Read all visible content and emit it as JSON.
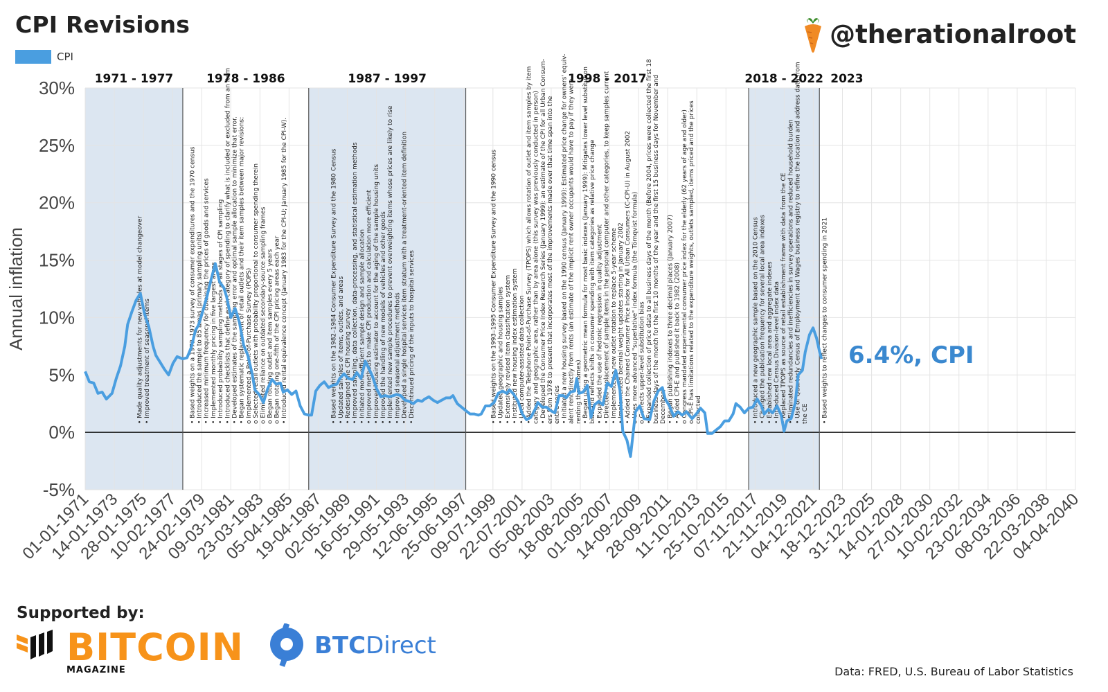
{
  "header": {
    "title": "CPI Revisions",
    "handle": "@therationalroot",
    "handle_icon": "carrot-icon"
  },
  "legend": {
    "label": "CPI",
    "color": "#4a9ee0"
  },
  "annotation": {
    "text": "6.4%, CPI",
    "color": "#3a88cf"
  },
  "footer": {
    "supported_by": "Supported by:",
    "sponsor1_word": "BITCOIN",
    "sponsor1_sub": "MAGAZINE",
    "sponsor2_word_a": "BTC",
    "sponsor2_word_b": "Direct",
    "source": "Data: FRED, U.S. Bureau of Labor Statistics"
  },
  "chart_data": {
    "type": "line",
    "ylabel": "Annual inflation",
    "ylim": [
      -5,
      30
    ],
    "yticks": [
      "-5%",
      "0%",
      "5%",
      "10%",
      "15%",
      "20%",
      "25%",
      "30%"
    ],
    "xlim": [
      "1971-01-01",
      "2041-01-01"
    ],
    "xtick_labels": [
      "01-01-1971",
      "14-01-1973",
      "28-01-1975",
      "10-02-1977",
      "24-02-1979",
      "09-03-1981",
      "23-03-1983",
      "05-04-1985",
      "19-04-1987",
      "02-05-1989",
      "16-05-1991",
      "29-05-1993",
      "12-06-1995",
      "25-06-1997",
      "09-07-1999",
      "22-07-2001",
      "05-08-2003",
      "18-08-2005",
      "01-09-2007",
      "14-09-2009",
      "28-09-2011",
      "11-10-2013",
      "25-10-2015",
      "07-11-2017",
      "21-11-2019",
      "04-12-2021",
      "18-12-2023",
      "31-12-2025",
      "14-01-2028",
      "27-01-2030",
      "10-02-2032",
      "23-02-2034",
      "08-03-2036",
      "22-03-2038",
      "04-04-2040"
    ],
    "periods": [
      {
        "label": "1971 - 1977",
        "start": 1971.0,
        "end": 1977.9,
        "shaded": true
      },
      {
        "label": "1978 - 1986",
        "start": 1977.9,
        "end": 1986.8,
        "shaded": false
      },
      {
        "label": "1987 - 1997",
        "start": 1986.8,
        "end": 1997.9,
        "shaded": true
      },
      {
        "label": "1998 - 2017",
        "start": 1997.9,
        "end": 2017.9,
        "shaded": false
      },
      {
        "label": "2018 - 2022",
        "start": 2017.9,
        "end": 2022.9,
        "shaded": true
      },
      {
        "label": "2023",
        "start": 2022.9,
        "end": 2024.9,
        "shaded": false
      }
    ],
    "series": [
      {
        "name": "CPI",
        "color": "#4a9ee0",
        "points": [
          [
            1971.0,
            5.3
          ],
          [
            1971.3,
            4.4
          ],
          [
            1971.6,
            4.3
          ],
          [
            1971.9,
            3.4
          ],
          [
            1972.2,
            3.5
          ],
          [
            1972.5,
            2.9
          ],
          [
            1972.9,
            3.4
          ],
          [
            1973.2,
            4.7
          ],
          [
            1973.5,
            5.8
          ],
          [
            1973.8,
            7.5
          ],
          [
            1974.0,
            9.4
          ],
          [
            1974.3,
            10.5
          ],
          [
            1974.6,
            11.5
          ],
          [
            1974.9,
            12.1
          ],
          [
            1975.2,
            10.3
          ],
          [
            1975.5,
            9.2
          ],
          [
            1975.8,
            7.5
          ],
          [
            1976.0,
            6.7
          ],
          [
            1976.3,
            6.1
          ],
          [
            1976.6,
            5.5
          ],
          [
            1976.9,
            5.0
          ],
          [
            1977.2,
            6.0
          ],
          [
            1977.5,
            6.6
          ],
          [
            1977.9,
            6.4
          ],
          [
            1978.2,
            6.5
          ],
          [
            1978.5,
            7.4
          ],
          [
            1978.8,
            8.9
          ],
          [
            1979.0,
            9.3
          ],
          [
            1979.3,
            10.5
          ],
          [
            1979.6,
            11.8
          ],
          [
            1979.9,
            13.3
          ],
          [
            1980.2,
            14.7
          ],
          [
            1980.5,
            13.1
          ],
          [
            1980.8,
            12.6
          ],
          [
            1981.0,
            11.8
          ],
          [
            1981.3,
            10.0
          ],
          [
            1981.6,
            10.8
          ],
          [
            1981.9,
            9.6
          ],
          [
            1982.2,
            7.6
          ],
          [
            1982.5,
            6.7
          ],
          [
            1982.8,
            5.1
          ],
          [
            1983.0,
            3.7
          ],
          [
            1983.3,
            3.3
          ],
          [
            1983.6,
            2.6
          ],
          [
            1983.9,
            3.8
          ],
          [
            1984.2,
            4.6
          ],
          [
            1984.5,
            4.2
          ],
          [
            1984.8,
            4.3
          ],
          [
            1985.0,
            3.5
          ],
          [
            1985.3,
            3.7
          ],
          [
            1985.6,
            3.3
          ],
          [
            1985.9,
            3.6
          ],
          [
            1986.2,
            2.3
          ],
          [
            1986.5,
            1.6
          ],
          [
            1986.8,
            1.5
          ],
          [
            1987.0,
            1.5
          ],
          [
            1987.3,
            3.6
          ],
          [
            1987.6,
            4.1
          ],
          [
            1987.9,
            4.4
          ],
          [
            1988.2,
            3.9
          ],
          [
            1988.5,
            4.1
          ],
          [
            1988.8,
            4.2
          ],
          [
            1989.0,
            4.7
          ],
          [
            1989.3,
            5.1
          ],
          [
            1989.6,
            4.7
          ],
          [
            1989.9,
            4.6
          ],
          [
            1990.2,
            5.2
          ],
          [
            1990.5,
            4.7
          ],
          [
            1990.8,
            6.2
          ],
          [
            1991.0,
            5.7
          ],
          [
            1991.3,
            4.9
          ],
          [
            1991.6,
            3.8
          ],
          [
            1991.9,
            3.1
          ],
          [
            1992.2,
            3.2
          ],
          [
            1992.5,
            3.1
          ],
          [
            1992.8,
            3.2
          ],
          [
            1993.0,
            3.3
          ],
          [
            1993.3,
            3.2
          ],
          [
            1993.6,
            2.8
          ],
          [
            1993.9,
            2.7
          ],
          [
            1994.2,
            2.5
          ],
          [
            1994.5,
            2.8
          ],
          [
            1994.8,
            2.7
          ],
          [
            1995.0,
            2.9
          ],
          [
            1995.3,
            3.1
          ],
          [
            1995.6,
            2.8
          ],
          [
            1995.9,
            2.6
          ],
          [
            1996.2,
            2.8
          ],
          [
            1996.5,
            3.0
          ],
          [
            1996.8,
            3.0
          ],
          [
            1997.0,
            3.2
          ],
          [
            1997.3,
            2.5
          ],
          [
            1997.6,
            2.2
          ],
          [
            1997.9,
            1.9
          ],
          [
            1998.2,
            1.6
          ],
          [
            1998.5,
            1.6
          ],
          [
            1998.8,
            1.5
          ],
          [
            1999.0,
            1.6
          ],
          [
            1999.3,
            2.3
          ],
          [
            1999.6,
            2.3
          ],
          [
            1999.9,
            2.6
          ],
          [
            2000.2,
            3.4
          ],
          [
            2000.5,
            3.6
          ],
          [
            2000.8,
            3.4
          ],
          [
            2001.0,
            3.7
          ],
          [
            2001.3,
            3.3
          ],
          [
            2001.6,
            2.7
          ],
          [
            2001.9,
            1.6
          ],
          [
            2002.2,
            1.1
          ],
          [
            2002.5,
            1.3
          ],
          [
            2002.8,
            2.0
          ],
          [
            2003.0,
            2.6
          ],
          [
            2003.3,
            2.2
          ],
          [
            2003.6,
            2.2
          ],
          [
            2003.9,
            1.9
          ],
          [
            2004.2,
            1.7
          ],
          [
            2004.5,
            3.2
          ],
          [
            2004.8,
            3.2
          ],
          [
            2005.0,
            3.0
          ],
          [
            2005.3,
            3.5
          ],
          [
            2005.6,
            3.6
          ],
          [
            2005.75,
            4.7
          ],
          [
            2005.9,
            3.4
          ],
          [
            2006.2,
            3.5
          ],
          [
            2006.5,
            4.1
          ],
          [
            2006.75,
            1.3
          ],
          [
            2007.0,
            2.4
          ],
          [
            2007.3,
            2.7
          ],
          [
            2007.6,
            2.4
          ],
          [
            2007.9,
            4.3
          ],
          [
            2008.2,
            4.0
          ],
          [
            2008.5,
            5.4
          ],
          [
            2008.8,
            3.7
          ],
          [
            2009.0,
            0.1
          ],
          [
            2009.3,
            -0.7
          ],
          [
            2009.55,
            -2.1
          ],
          [
            2009.9,
            1.8
          ],
          [
            2010.2,
            2.3
          ],
          [
            2010.5,
            1.2
          ],
          [
            2010.9,
            1.1
          ],
          [
            2011.2,
            2.7
          ],
          [
            2011.5,
            3.6
          ],
          [
            2011.8,
            3.9
          ],
          [
            2012.0,
            2.9
          ],
          [
            2012.3,
            2.3
          ],
          [
            2012.6,
            1.4
          ],
          [
            2012.9,
            1.8
          ],
          [
            2013.2,
            1.5
          ],
          [
            2013.5,
            1.8
          ],
          [
            2013.9,
            1.2
          ],
          [
            2014.2,
            1.6
          ],
          [
            2014.5,
            2.1
          ],
          [
            2014.8,
            1.7
          ],
          [
            2015.0,
            -0.1
          ],
          [
            2015.3,
            -0.1
          ],
          [
            2015.6,
            0.2
          ],
          [
            2015.9,
            0.5
          ],
          [
            2016.2,
            1.0
          ],
          [
            2016.5,
            1.0
          ],
          [
            2016.8,
            1.6
          ],
          [
            2017.0,
            2.5
          ],
          [
            2017.3,
            2.2
          ],
          [
            2017.6,
            1.7
          ],
          [
            2017.9,
            2.1
          ],
          [
            2018.2,
            2.2
          ],
          [
            2018.5,
            2.9
          ],
          [
            2018.8,
            2.3
          ],
          [
            2019.0,
            1.6
          ],
          [
            2019.3,
            2.0
          ],
          [
            2019.6,
            1.7
          ],
          [
            2019.9,
            2.3
          ],
          [
            2020.2,
            1.5
          ],
          [
            2020.4,
            0.1
          ],
          [
            2020.6,
            1.0
          ],
          [
            2020.9,
            1.2
          ],
          [
            2021.2,
            2.6
          ],
          [
            2021.4,
            5.0
          ],
          [
            2021.7,
            5.4
          ],
          [
            2021.9,
            7.0
          ],
          [
            2022.2,
            8.5
          ],
          [
            2022.45,
            9.1
          ],
          [
            2022.7,
            8.2
          ],
          [
            2022.9,
            7.1
          ],
          [
            2023.05,
            6.4
          ]
        ]
      }
    ],
    "callout": "6.4%, CPI",
    "notes": [
      {
        "x": 1975.0,
        "lines": [
          "• Made quality adjustments for new vehicles at model changeover",
          "• Improved treatment of seasonal items"
        ]
      },
      {
        "x": 1978.7,
        "lines": [
          "• Based weights on a 1972–1973 survey of consumer expenditures and the 1970 census",
          "• Introduced the sample to 85 areas (primary sampling units)",
          "• Increased minimum frequency for obtaining the prices of goods and services",
          "• Implemented monthly pricing in five largest areas",
          "• Introduced probability sampling methods at all stages of CPI sampling",
          "• Introduced checklists that define each category of spending to clarify what is included or excluded from an item",
          "• Developed estimates of the sampling error and optimal sample allocation to minimize that error.",
          "• Began systematic replacement of retail outlets and their item samples between major revisions:",
          "    o Implemented a Point-of-Purchase Survey (POPS)",
          "    o Selected retail outlets with probability proportional to consumer spending therein",
          "    o Eliminated reliance on outdated secondary-source sampling frames",
          "    o Began rotating outlet and item samples every 5 years",
          "    o Began rotating one-fifth of the CPI pricing areas each year",
          "• Introduced rental equivalence concept (January 1983 for the CPI-U; January 1985 for the CPI-W)."
        ]
      },
      {
        "x": 1988.7,
        "lines": [
          "• Based weights on the 1982–1984 Consumer Expenditure Survey and the 1980 Census",
          "• Updated samples of items, outlets, and areas",
          "• Redesigned the CPI housing survey",
          "• Improved sampling, data collection, data-processing, and statistical estimation methods",
          "• Initiated more efficient sample design and sample allocation",
          "• Improved methods to make CPI production and calculation more efficient",
          "• Improved housing estimator to account for the aging of the sample housing units",
          "• Improved the handling of new models of vehicles and other goods",
          "• Implemented new sample procedures to prevent overweighting items whose prices are likely to rise",
          "• Improved seasonal adjustment methods",
          "• Developed a single hospital services item stratum with a treatment-oriented item definition",
          "• Discontinued pricing of the inputs to hospital services"
        ]
      },
      {
        "x": 2000.0,
        "lines": [
          "• Based weights on the 1993–1995 Consumer Expenditure Survey and the 1990 census",
          "• Updated geographic and housing samples",
          "• Extensively revised item classification system",
          "• Instituted new housing index estimation system",
          "• Used computer-assisted data collection",
          "• Added the Telephone Point-of-Purchase Survey (TPOPS) which allows rotation of outlet and item samples by item",
          "   category and geographic area, rather than by area alone (this survey was previously conducted in person)",
          "• Developed the Consumer Price Index Research Series (January 1999): an estimate of the CPI for all Urban Consum-",
          "   ers from 1978 to present that incorporates most of the improvements made over that time span into the",
          "   entire series",
          "• Initiated a new housing survey based on the 1990 census (January 1999): Estimated price change for owners' equiv-",
          "   alent rent directly from rents (an estimate of the implicit rent owner occupants would have to pay if they were",
          "   renting their homes)",
          "• Began using a geometric mean formula for most basic indexes (January 1999): Mitigates lower level substitution",
          "   bias and reflects shifts in consumer spending with item categories as relative price change",
          "• Expanded the use of hedonic regression in quality adjustment",
          "• Directed replacement of sample items in the personal computer and other categories, to keep samples current",
          "• Implemented a new outlet rotation to replace 5-year scheme",
          "• Implemented biennial weight updates starting in January 2002",
          "• Added the Chained Consumer Price Index for All Urban Consumers (C-CPI-U) in August 2002",
          "    o Uses more advanced \"superlative\" index formula (the Törnqvist formula)",
          "    o Corrects upper-level substitution bias",
          "• Expanded collection of price data to all business days of the month (Before 2004, prices were collected the first 18",
          "   business days of the month for the first 10 months of the year and the first 15 business days for November and",
          "   December)",
          "• Began publishing indexes to three decimal places (January 2007)",
          "• Added CPI-E and published it back to 1982 (2008)",
          "    o Congress mandated experimental consumer price index for the elderly (62 years of age and older)",
          "    o CPI-E has limitations related to the expenditure weights, outlets sampled, items priced and the prices",
          "       collected"
        ]
      },
      {
        "x": 2018.5,
        "lines": [
          "• Introduced a new geographic sample based on the 2010 Census",
          "• Changed the publication frequency for several local area indexes",
          "• Established new local area and aggregate indexes",
          "• Introduced Census Division-level index data",
          "• Replaced TPOPS as source of retail establishment frame with data from the CE",
          "• Eliminated redundancies and inefficiencies in survey operations and reduced household burden",
          "• Use of Quarterly Census of Employment and Wages business registry to refine the location and address data from",
          "   the CE"
        ]
      },
      {
        "x": 2023.4,
        "lines": [
          "• Based weights to reflect changes to consumer spending in 2021"
        ]
      }
    ]
  }
}
